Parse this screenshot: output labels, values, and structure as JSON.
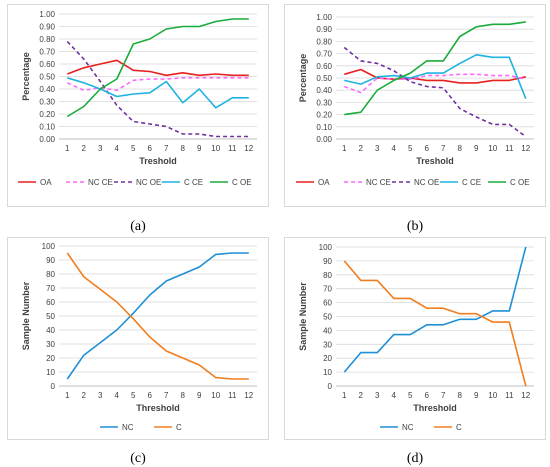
{
  "chart_data": [
    {
      "type": "line",
      "panel_label": "(a)",
      "xlabel": "Treshold",
      "ylabel": "Percentage",
      "x": [
        1,
        2,
        3,
        4,
        5,
        6,
        7,
        8,
        9,
        10,
        11,
        12
      ],
      "ylim": [
        0,
        1
      ],
      "yticks": [
        "0.00",
        "0.10",
        "0.20",
        "0.30",
        "0.40",
        "0.50",
        "0.60",
        "0.70",
        "0.80",
        "0.90",
        "1.00"
      ],
      "grid": true,
      "legend": "bottom",
      "series": [
        {
          "name": "OA",
          "color": "#e8201e",
          "dash": "solid",
          "values": [
            0.52,
            0.57,
            0.6,
            0.63,
            0.55,
            0.54,
            0.51,
            0.53,
            0.51,
            0.52,
            0.51,
            0.51
          ]
        },
        {
          "name": "NC CE",
          "color": "#ff66ff",
          "dash": "dashed",
          "values": [
            0.45,
            0.39,
            0.41,
            0.39,
            0.47,
            0.48,
            0.48,
            0.49,
            0.49,
            0.49,
            0.49,
            0.49
          ]
        },
        {
          "name": "NC OE",
          "color": "#7030a0",
          "dash": "dashed",
          "values": [
            0.78,
            0.64,
            0.46,
            0.27,
            0.14,
            0.12,
            0.1,
            0.04,
            0.04,
            0.02,
            0.02,
            0.02
          ]
        },
        {
          "name": "C CE",
          "color": "#1fb3e0",
          "dash": "solid",
          "values": [
            0.49,
            0.45,
            0.4,
            0.34,
            0.36,
            0.37,
            0.46,
            0.29,
            0.4,
            0.25,
            0.33,
            0.33
          ]
        },
        {
          "name": "C OE",
          "color": "#1aab3a",
          "dash": "solid",
          "values": [
            0.18,
            0.26,
            0.4,
            0.48,
            0.76,
            0.8,
            0.88,
            0.9,
            0.9,
            0.94,
            0.96,
            0.96
          ]
        }
      ]
    },
    {
      "type": "line",
      "panel_label": "(b)",
      "xlabel": "Treshold",
      "ylabel": "Percentage",
      "x": [
        1,
        2,
        3,
        4,
        5,
        6,
        7,
        8,
        9,
        10,
        11,
        12
      ],
      "ylim": [
        0,
        1
      ],
      "yticks": [
        "0.00",
        "0.10",
        "0.20",
        "0.30",
        "0.40",
        "0.50",
        "0.60",
        "0.70",
        "0.80",
        "0.90",
        "1.00"
      ],
      "grid": true,
      "legend": "bottom",
      "series": [
        {
          "name": "OA",
          "color": "#e8201e",
          "dash": "solid",
          "values": [
            0.53,
            0.57,
            0.5,
            0.49,
            0.5,
            0.48,
            0.48,
            0.46,
            0.46,
            0.48,
            0.48,
            0.51
          ]
        },
        {
          "name": "NC CE",
          "color": "#ff66ff",
          "dash": "dashed",
          "values": [
            0.43,
            0.38,
            0.5,
            0.49,
            0.49,
            0.52,
            0.52,
            0.53,
            0.53,
            0.52,
            0.52,
            0.49
          ]
        },
        {
          "name": "NC OE",
          "color": "#7030a0",
          "dash": "dashed",
          "values": [
            0.75,
            0.64,
            0.62,
            0.56,
            0.47,
            0.43,
            0.42,
            0.25,
            0.18,
            0.12,
            0.12,
            0.02
          ]
        },
        {
          "name": "C CE",
          "color": "#1fb3e0",
          "dash": "solid",
          "values": [
            0.48,
            0.45,
            0.51,
            0.52,
            0.5,
            0.54,
            0.54,
            0.62,
            0.69,
            0.67,
            0.67,
            0.33
          ]
        },
        {
          "name": "C OE",
          "color": "#1aab3a",
          "dash": "solid",
          "values": [
            0.2,
            0.22,
            0.4,
            0.48,
            0.54,
            0.64,
            0.64,
            0.84,
            0.92,
            0.94,
            0.94,
            0.96
          ]
        }
      ]
    },
    {
      "type": "line",
      "panel_label": "(c)",
      "xlabel": "Threshold",
      "ylabel": "Sample Number",
      "x": [
        1,
        2,
        3,
        4,
        5,
        6,
        7,
        8,
        9,
        10,
        11,
        12
      ],
      "ylim": [
        0,
        100
      ],
      "yticks": [
        "0",
        "10",
        "20",
        "30",
        "40",
        "50",
        "60",
        "70",
        "80",
        "90",
        "100"
      ],
      "grid": true,
      "legend": "bottom",
      "series": [
        {
          "name": "NC",
          "color": "#1f8fd6",
          "dash": "solid",
          "values": [
            5,
            22,
            31,
            40,
            52,
            65,
            75,
            80,
            85,
            94,
            95,
            95
          ]
        },
        {
          "name": "C",
          "color": "#f07d1e",
          "dash": "solid",
          "values": [
            95,
            78,
            69,
            60,
            48,
            35,
            25,
            20,
            15,
            6,
            5,
            5
          ]
        }
      ]
    },
    {
      "type": "line",
      "panel_label": "(d)",
      "xlabel": "Threshold",
      "ylabel": "Sample Number",
      "x": [
        1,
        2,
        3,
        4,
        5,
        6,
        7,
        8,
        9,
        10,
        11,
        12
      ],
      "ylim": [
        0,
        100
      ],
      "yticks": [
        "0",
        "10",
        "20",
        "30",
        "40",
        "50",
        "60",
        "70",
        "80",
        "90",
        "100"
      ],
      "grid": true,
      "legend": "bottom",
      "series": [
        {
          "name": "NC",
          "color": "#1f8fd6",
          "dash": "solid",
          "values": [
            10,
            24,
            24,
            37,
            37,
            44,
            44,
            48,
            48,
            54,
            54,
            100
          ]
        },
        {
          "name": "C",
          "color": "#f07d1e",
          "dash": "solid",
          "values": [
            90,
            76,
            76,
            63,
            63,
            56,
            56,
            52,
            52,
            46,
            46,
            0
          ]
        }
      ]
    }
  ]
}
